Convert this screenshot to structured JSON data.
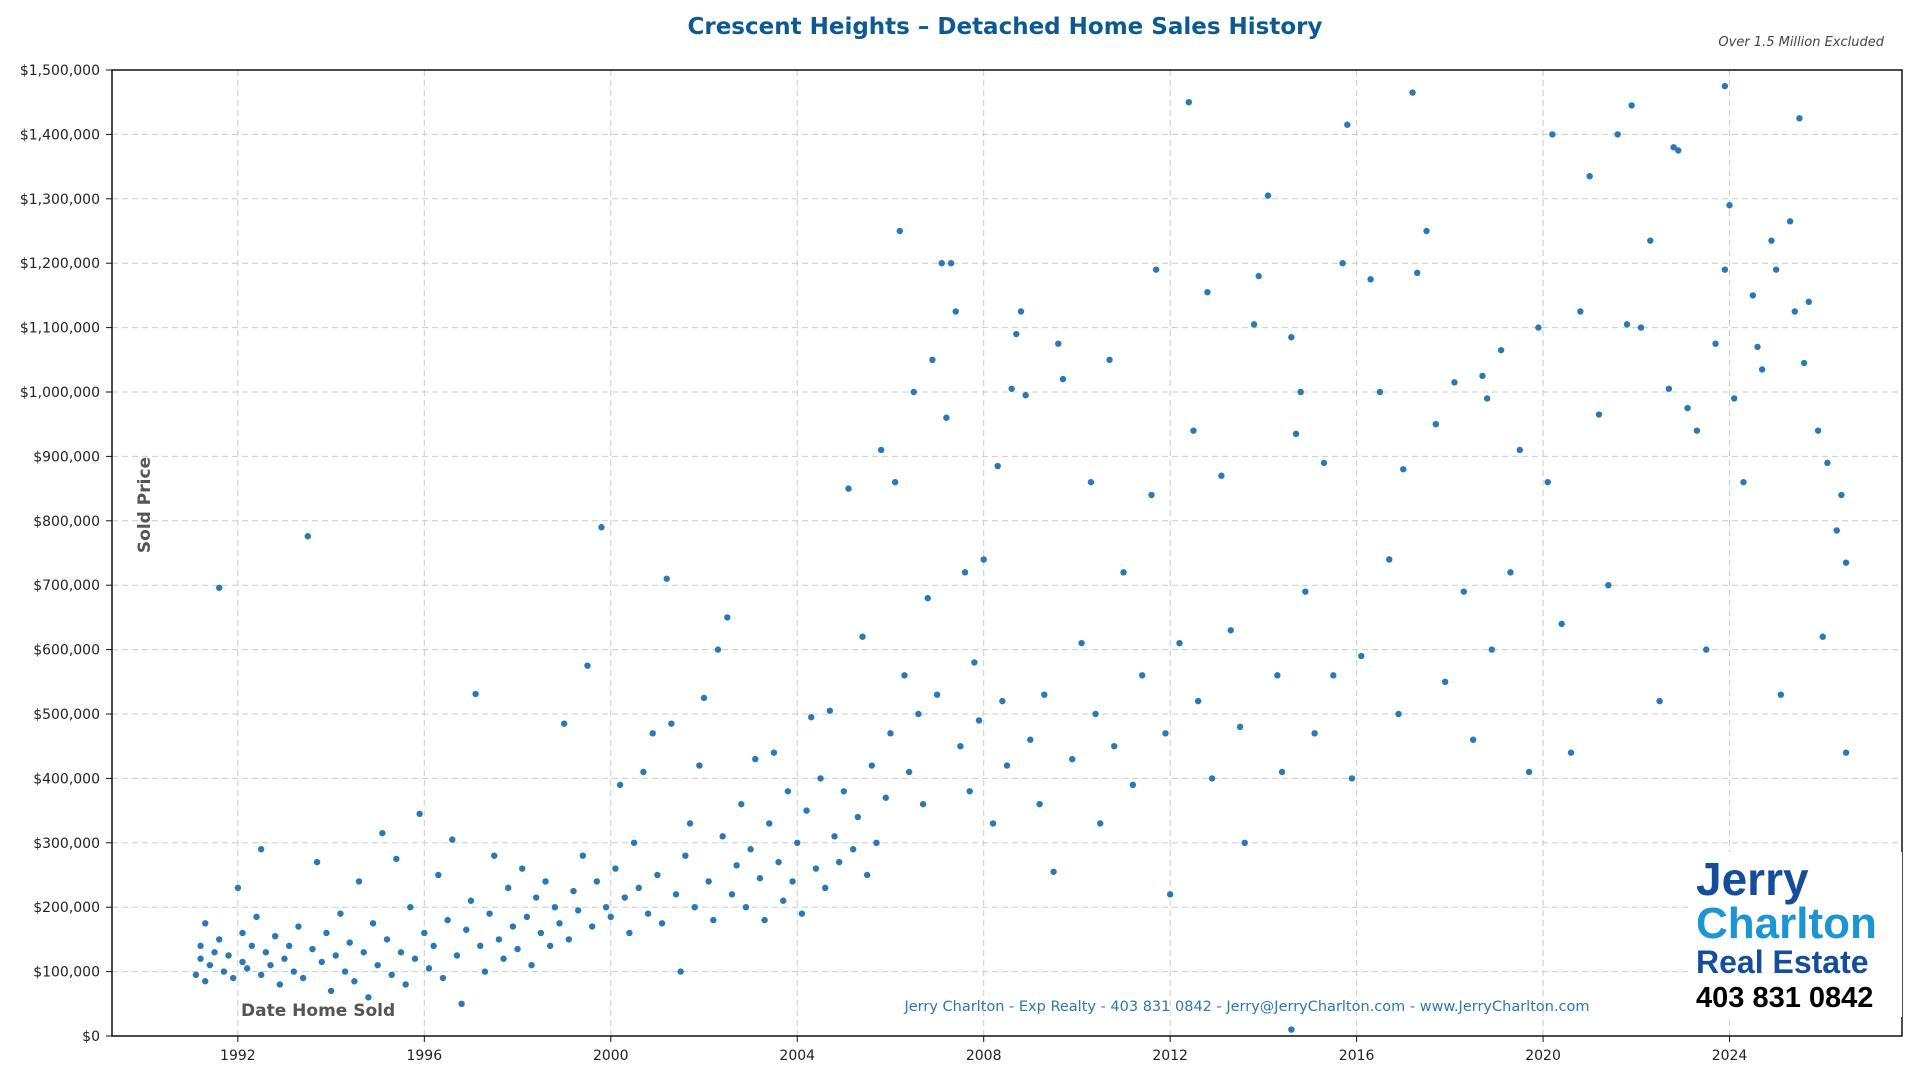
{
  "chart_data": {
    "type": "scatter",
    "title": "Crescent Heights – Detached Home Sales History",
    "subtitle": "Over 1.5 Million Excluded",
    "xlabel": "Date Home Sold",
    "ylabel": "Sold Price",
    "xlim": [
      1989.3,
      2027.7
    ],
    "ylim": [
      0,
      1500000
    ],
    "x_ticks": [
      1992,
      1996,
      2000,
      2004,
      2008,
      2012,
      2016,
      2020,
      2024
    ],
    "y_ticks": [
      0,
      100000,
      200000,
      300000,
      400000,
      500000,
      600000,
      700000,
      800000,
      900000,
      1000000,
      1100000,
      1200000,
      1300000,
      1400000,
      1500000
    ],
    "y_tick_labels": [
      "$0",
      "$100,000",
      "$200,000",
      "$300,000",
      "$400,000",
      "$500,000",
      "$600,000",
      "$700,000",
      "$800,000",
      "$900,000",
      "$1,000,000",
      "$1,100,000",
      "$1,200,000",
      "$1,300,000",
      "$1,400,000",
      "$1,500,000"
    ],
    "grid": true,
    "point_color": "#2a78b5",
    "points": [
      [
        1991.1,
        95000
      ],
      [
        1991.2,
        120000
      ],
      [
        1991.2,
        140000
      ],
      [
        1991.3,
        85000
      ],
      [
        1991.3,
        175000
      ],
      [
        1991.4,
        110000
      ],
      [
        1991.5,
        130000
      ],
      [
        1991.6,
        150000
      ],
      [
        1991.6,
        696000
      ],
      [
        1991.7,
        100000
      ],
      [
        1991.8,
        125000
      ],
      [
        1991.9,
        90000
      ],
      [
        1992.0,
        230000
      ],
      [
        1992.1,
        160000
      ],
      [
        1992.1,
        115000
      ],
      [
        1992.2,
        105000
      ],
      [
        1992.3,
        140000
      ],
      [
        1992.4,
        185000
      ],
      [
        1992.5,
        290000
      ],
      [
        1992.5,
        95000
      ],
      [
        1992.6,
        130000
      ],
      [
        1992.7,
        110000
      ],
      [
        1992.8,
        155000
      ],
      [
        1992.9,
        80000
      ],
      [
        1993.0,
        120000
      ],
      [
        1993.1,
        140000
      ],
      [
        1993.2,
        100000
      ],
      [
        1993.3,
        170000
      ],
      [
        1993.4,
        90000
      ],
      [
        1993.5,
        776000
      ],
      [
        1993.6,
        135000
      ],
      [
        1993.7,
        270000
      ],
      [
        1993.8,
        115000
      ],
      [
        1993.9,
        160000
      ],
      [
        1994.0,
        70000
      ],
      [
        1994.1,
        125000
      ],
      [
        1994.2,
        190000
      ],
      [
        1994.3,
        100000
      ],
      [
        1994.4,
        145000
      ],
      [
        1994.5,
        85000
      ],
      [
        1994.6,
        240000
      ],
      [
        1994.7,
        130000
      ],
      [
        1994.8,
        60000
      ],
      [
        1994.9,
        175000
      ],
      [
        1995.0,
        110000
      ],
      [
        1995.1,
        315000
      ],
      [
        1995.2,
        150000
      ],
      [
        1995.3,
        95000
      ],
      [
        1995.4,
        275000
      ],
      [
        1995.5,
        130000
      ],
      [
        1995.6,
        80000
      ],
      [
        1995.7,
        200000
      ],
      [
        1995.8,
        120000
      ],
      [
        1995.9,
        345000
      ],
      [
        1996.0,
        160000
      ],
      [
        1996.1,
        105000
      ],
      [
        1996.2,
        140000
      ],
      [
        1996.3,
        250000
      ],
      [
        1996.4,
        90000
      ],
      [
        1996.5,
        180000
      ],
      [
        1996.6,
        305000
      ],
      [
        1996.7,
        125000
      ],
      [
        1996.8,
        50000
      ],
      [
        1996.9,
        165000
      ],
      [
        1997.0,
        210000
      ],
      [
        1997.1,
        531000
      ],
      [
        1997.2,
        140000
      ],
      [
        1997.3,
        100000
      ],
      [
        1997.4,
        190000
      ],
      [
        1997.5,
        280000
      ],
      [
        1997.6,
        150000
      ],
      [
        1997.7,
        120000
      ],
      [
        1997.8,
        230000
      ],
      [
        1997.9,
        170000
      ],
      [
        1998.0,
        135000
      ],
      [
        1998.1,
        260000
      ],
      [
        1998.2,
        185000
      ],
      [
        1998.3,
        110000
      ],
      [
        1998.4,
        215000
      ],
      [
        1998.5,
        160000
      ],
      [
        1998.6,
        240000
      ],
      [
        1998.7,
        140000
      ],
      [
        1998.8,
        200000
      ],
      [
        1998.9,
        175000
      ],
      [
        1999.0,
        485000
      ],
      [
        1999.1,
        150000
      ],
      [
        1999.2,
        225000
      ],
      [
        1999.3,
        195000
      ],
      [
        1999.4,
        280000
      ],
      [
        1999.5,
        575000
      ],
      [
        1999.6,
        170000
      ],
      [
        1999.7,
        240000
      ],
      [
        1999.8,
        790000
      ],
      [
        1999.9,
        200000
      ],
      [
        2000.0,
        185000
      ],
      [
        2000.1,
        260000
      ],
      [
        2000.2,
        390000
      ],
      [
        2000.3,
        215000
      ],
      [
        2000.4,
        160000
      ],
      [
        2000.5,
        300000
      ],
      [
        2000.6,
        230000
      ],
      [
        2000.7,
        410000
      ],
      [
        2000.8,
        190000
      ],
      [
        2000.9,
        470000
      ],
      [
        2001.0,
        250000
      ],
      [
        2001.1,
        175000
      ],
      [
        2001.2,
        710000
      ],
      [
        2001.3,
        485000
      ],
      [
        2001.4,
        220000
      ],
      [
        2001.5,
        100000
      ],
      [
        2001.6,
        280000
      ],
      [
        2001.7,
        330000
      ],
      [
        2001.8,
        200000
      ],
      [
        2001.9,
        420000
      ],
      [
        2002.0,
        525000
      ],
      [
        2002.1,
        240000
      ],
      [
        2002.2,
        180000
      ],
      [
        2002.3,
        600000
      ],
      [
        2002.4,
        310000
      ],
      [
        2002.5,
        650000
      ],
      [
        2002.6,
        220000
      ],
      [
        2002.7,
        265000
      ],
      [
        2002.8,
        360000
      ],
      [
        2002.9,
        200000
      ],
      [
        2003.0,
        290000
      ],
      [
        2003.1,
        430000
      ],
      [
        2003.2,
        245000
      ],
      [
        2003.3,
        180000
      ],
      [
        2003.4,
        330000
      ],
      [
        2003.5,
        440000
      ],
      [
        2003.6,
        270000
      ],
      [
        2003.7,
        210000
      ],
      [
        2003.8,
        380000
      ],
      [
        2003.9,
        240000
      ],
      [
        2004.0,
        300000
      ],
      [
        2004.1,
        190000
      ],
      [
        2004.2,
        350000
      ],
      [
        2004.3,
        495000
      ],
      [
        2004.4,
        260000
      ],
      [
        2004.5,
        400000
      ],
      [
        2004.6,
        230000
      ],
      [
        2004.7,
        505000
      ],
      [
        2004.8,
        310000
      ],
      [
        2004.9,
        270000
      ],
      [
        2005.0,
        380000
      ],
      [
        2005.1,
        850000
      ],
      [
        2005.2,
        290000
      ],
      [
        2005.3,
        340000
      ],
      [
        2005.4,
        620000
      ],
      [
        2005.5,
        250000
      ],
      [
        2005.6,
        420000
      ],
      [
        2005.7,
        300000
      ],
      [
        2005.8,
        910000
      ],
      [
        2005.9,
        370000
      ],
      [
        2006.0,
        470000
      ],
      [
        2006.1,
        860000
      ],
      [
        2006.2,
        1250000
      ],
      [
        2006.3,
        560000
      ],
      [
        2006.4,
        410000
      ],
      [
        2006.5,
        1000000
      ],
      [
        2006.6,
        500000
      ],
      [
        2006.7,
        360000
      ],
      [
        2006.8,
        680000
      ],
      [
        2006.9,
        1050000
      ],
      [
        2007.0,
        530000
      ],
      [
        2007.1,
        1200000
      ],
      [
        2007.2,
        960000
      ],
      [
        2007.3,
        1200000
      ],
      [
        2007.4,
        1125000
      ],
      [
        2007.5,
        450000
      ],
      [
        2007.6,
        720000
      ],
      [
        2007.7,
        380000
      ],
      [
        2007.8,
        580000
      ],
      [
        2007.9,
        490000
      ],
      [
        2008.0,
        740000
      ],
      [
        2008.2,
        330000
      ],
      [
        2008.3,
        885000
      ],
      [
        2008.4,
        520000
      ],
      [
        2008.5,
        420000
      ],
      [
        2008.6,
        1005000
      ],
      [
        2008.7,
        1090000
      ],
      [
        2008.8,
        1125000
      ],
      [
        2008.9,
        995000
      ],
      [
        2009.0,
        460000
      ],
      [
        2009.2,
        360000
      ],
      [
        2009.3,
        530000
      ],
      [
        2009.5,
        255000
      ],
      [
        2009.6,
        1075000
      ],
      [
        2009.7,
        1020000
      ],
      [
        2009.9,
        430000
      ],
      [
        2010.1,
        610000
      ],
      [
        2010.3,
        860000
      ],
      [
        2010.4,
        500000
      ],
      [
        2010.5,
        330000
      ],
      [
        2010.7,
        1050000
      ],
      [
        2010.8,
        450000
      ],
      [
        2011.0,
        720000
      ],
      [
        2011.2,
        390000
      ],
      [
        2011.4,
        560000
      ],
      [
        2011.6,
        840000
      ],
      [
        2011.7,
        1190000
      ],
      [
        2011.9,
        470000
      ],
      [
        2012.0,
        220000
      ],
      [
        2012.2,
        610000
      ],
      [
        2012.4,
        1450000
      ],
      [
        2012.5,
        940000
      ],
      [
        2012.6,
        520000
      ],
      [
        2012.8,
        1155000
      ],
      [
        2012.9,
        400000
      ],
      [
        2013.1,
        870000
      ],
      [
        2013.3,
        630000
      ],
      [
        2013.5,
        480000
      ],
      [
        2013.6,
        300000
      ],
      [
        2013.8,
        1105000
      ],
      [
        2013.9,
        1180000
      ],
      [
        2014.1,
        1305000
      ],
      [
        2014.3,
        560000
      ],
      [
        2014.4,
        410000
      ],
      [
        2014.6,
        1085000
      ],
      [
        2014.7,
        935000
      ],
      [
        2014.8,
        1000000
      ],
      [
        2014.9,
        690000
      ],
      [
        2015.1,
        470000
      ],
      [
        2015.3,
        890000
      ],
      [
        2015.5,
        560000
      ],
      [
        2015.7,
        1200000
      ],
      [
        2015.8,
        1415000
      ],
      [
        2015.9,
        400000
      ],
      [
        2016.1,
        590000
      ],
      [
        2016.3,
        1175000
      ],
      [
        2016.5,
        1000000
      ],
      [
        2016.7,
        740000
      ],
      [
        2016.9,
        500000
      ],
      [
        2017.0,
        880000
      ],
      [
        2017.2,
        1465000
      ],
      [
        2017.3,
        1185000
      ],
      [
        2017.5,
        1250000
      ],
      [
        2017.7,
        950000
      ],
      [
        2017.9,
        550000
      ],
      [
        2018.1,
        1015000
      ],
      [
        2018.3,
        690000
      ],
      [
        2018.5,
        460000
      ],
      [
        2018.7,
        1025000
      ],
      [
        2018.8,
        990000
      ],
      [
        2018.9,
        600000
      ],
      [
        2019.1,
        1065000
      ],
      [
        2019.3,
        720000
      ],
      [
        2019.5,
        910000
      ],
      [
        2019.7,
        410000
      ],
      [
        2019.9,
        1100000
      ],
      [
        2020.1,
        860000
      ],
      [
        2020.2,
        1400000
      ],
      [
        2020.4,
        640000
      ],
      [
        2020.6,
        440000
      ],
      [
        2020.8,
        1125000
      ],
      [
        2021.0,
        1335000
      ],
      [
        2021.2,
        965000
      ],
      [
        2021.4,
        700000
      ],
      [
        2021.6,
        1400000
      ],
      [
        2021.8,
        1105000
      ],
      [
        2021.9,
        1445000
      ],
      [
        2022.1,
        1100000
      ],
      [
        2022.3,
        1235000
      ],
      [
        2022.5,
        520000
      ],
      [
        2022.7,
        1005000
      ],
      [
        2022.8,
        1380000
      ],
      [
        2022.9,
        1375000
      ],
      [
        2023.1,
        975000
      ],
      [
        2023.3,
        940000
      ],
      [
        2023.5,
        600000
      ],
      [
        2023.7,
        1075000
      ],
      [
        2023.9,
        1475000
      ],
      [
        2023.9,
        1190000
      ],
      [
        2024.0,
        1290000
      ],
      [
        2024.1,
        990000
      ],
      [
        2024.3,
        860000
      ],
      [
        2024.5,
        1150000
      ],
      [
        2024.6,
        1070000
      ],
      [
        2024.7,
        1035000
      ],
      [
        2024.9,
        1235000
      ],
      [
        2025.0,
        1190000
      ],
      [
        2025.1,
        530000
      ],
      [
        2025.3,
        1265000
      ],
      [
        2025.4,
        1125000
      ],
      [
        2025.5,
        1425000
      ],
      [
        2025.6,
        1045000
      ],
      [
        2025.7,
        1140000
      ],
      [
        2025.9,
        940000
      ],
      [
        2026.0,
        620000
      ],
      [
        2026.1,
        890000
      ],
      [
        2026.3,
        785000
      ],
      [
        2026.4,
        840000
      ],
      [
        2026.5,
        735000
      ],
      [
        2026.5,
        440000
      ],
      [
        2014.6,
        10000
      ]
    ]
  },
  "footer_contact": "Jerry Charlton - Exp Realty - 403 831 0842 - Jerry@JerryCharlton.com - www.JerryCharlton.com",
  "logo": {
    "line1": "Jerry",
    "line2": "Charlton",
    "line3": "Real Estate",
    "phone": "403 831 0842"
  }
}
